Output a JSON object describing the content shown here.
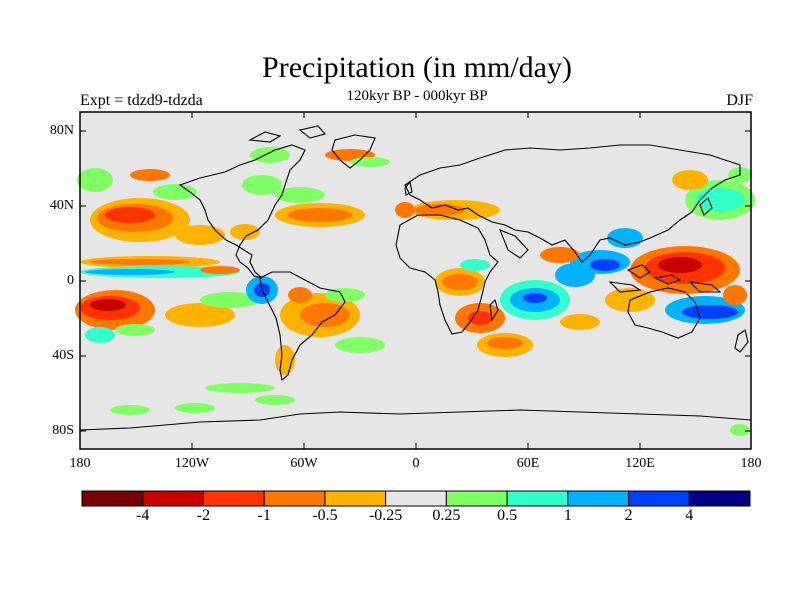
{
  "header": {
    "title": "Precipitation (in mm/day)",
    "subtitle": "120kyr BP - 000kyr BP",
    "experiment": "Expt = tdzd9-tdzda",
    "season": "DJF"
  },
  "axes": {
    "lat_labels": [
      "80N",
      "40N",
      "0",
      "40S",
      "80S"
    ],
    "lon_labels": [
      "180",
      "120W",
      "60W",
      "0",
      "60E",
      "120E",
      "180"
    ]
  },
  "colorbar": {
    "colors": [
      "#7a0000",
      "#c80000",
      "#ff3300",
      "#ff7700",
      "#ffb300",
      "#e6e6e6",
      "#80ff64",
      "#33ffcc",
      "#00b3ff",
      "#0040ff",
      "#000080"
    ],
    "labels": [
      "-4",
      "-2",
      "-1",
      "-0.5",
      "-0.25",
      "0.25",
      "0.5",
      "1",
      "2",
      "4"
    ]
  },
  "map_colors": {
    "background": "#e6e6e6",
    "coast": "#000000"
  }
}
